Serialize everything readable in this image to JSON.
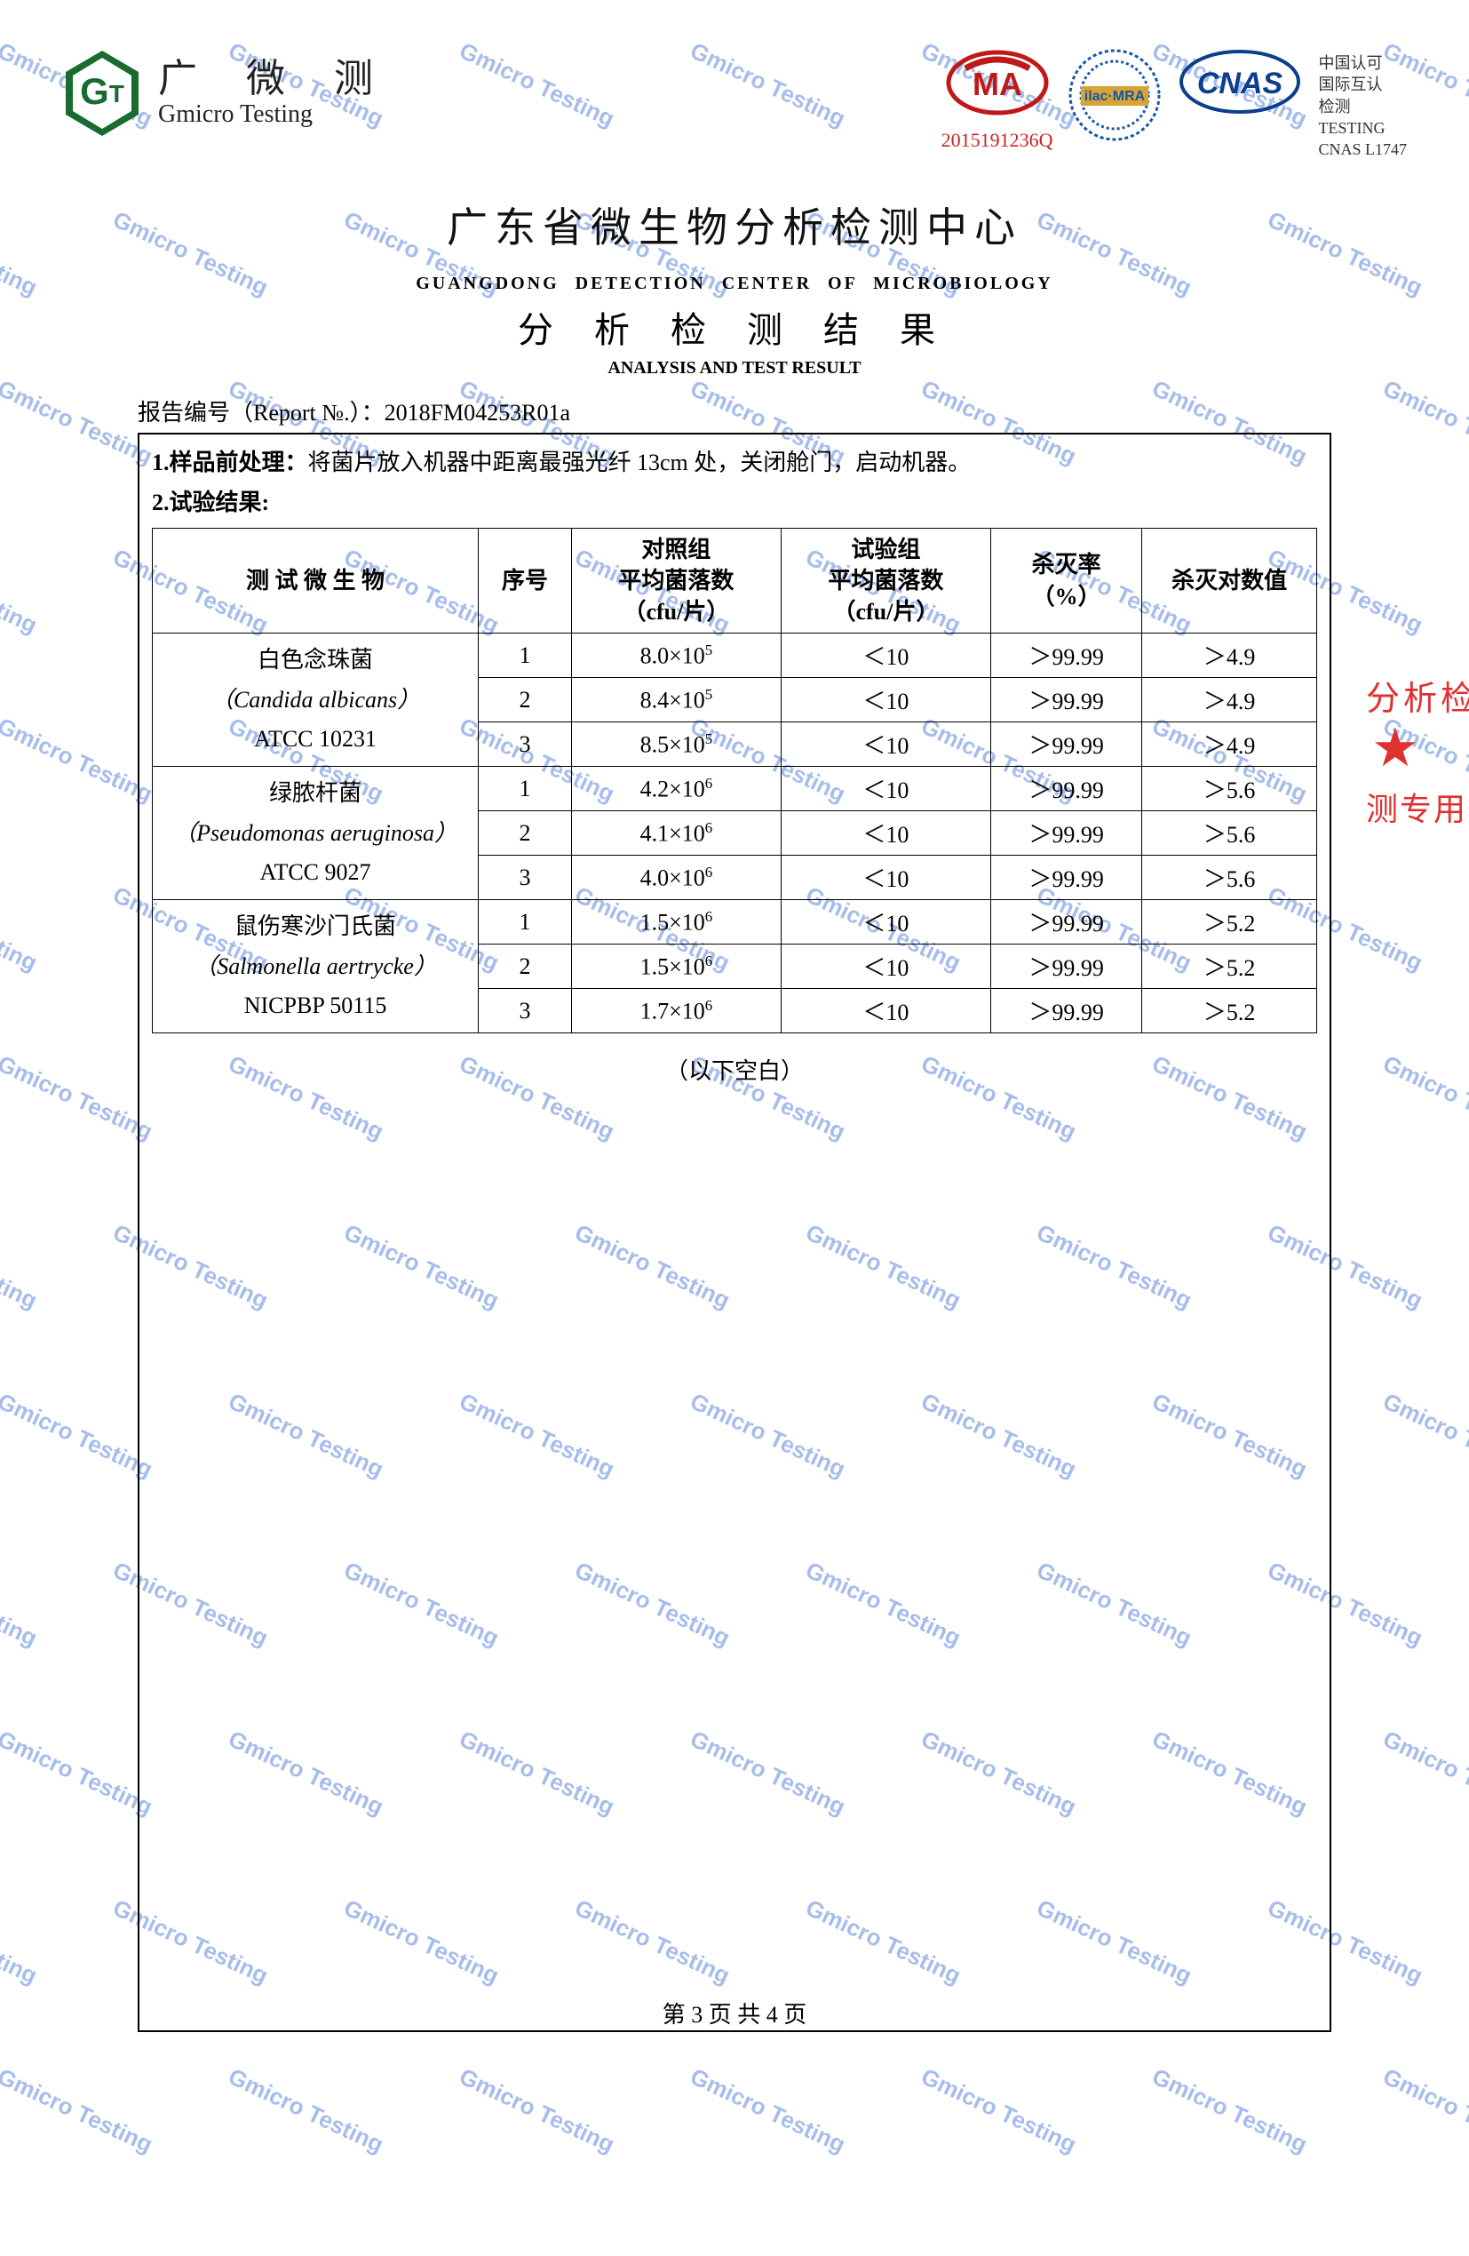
{
  "watermark": {
    "text": "Gmicro Testing",
    "color": "#3b6fd6",
    "angle_deg": 25,
    "fontsize": 26,
    "opacity": 0.45,
    "step_x": 260,
    "step_y": 190
  },
  "logo": {
    "cn": "广 微 测",
    "en": "Gmicro Testing",
    "hex_color": "#1a6b2f"
  },
  "certs": {
    "cma_number": "2015191236Q",
    "cma_color": "#c01818",
    "ilac_label": "ilac-MRA",
    "ilac_color": "#1556a6",
    "cnas_label": "CNAS",
    "cnas_color": "#0b3e8c",
    "cnas_side_lines": [
      "中国认可",
      "国际互认",
      "检测",
      "TESTING",
      "CNAS L1747"
    ]
  },
  "titles": {
    "org_cn": "广东省微生物分析检测中心",
    "org_en": "GUANGDONG  DETECTION  CENTER  OF  MICROBIOLOGY",
    "result_cn": "分 析 检 测 结 果",
    "result_en": "ANALYSIS AND TEST RESULT"
  },
  "report_no_label": "报告编号（Report №.）：",
  "report_no": "2018FM04253R01a",
  "preprocess_label": "1.样品前处理：",
  "preprocess_text": "将菌片放入机器中距离最强光纤 13cm 处，关闭舱门，启动机器。",
  "result_label": "2.试验结果:",
  "table": {
    "columns": [
      "测 试 微 生 物",
      "序号",
      "对照组\n平均菌落数\n（cfu/片）",
      "试验组\n平均菌落数\n（cfu/片）",
      "杀灭率\n（%）",
      "杀灭对数值"
    ],
    "col_widths_pct": [
      28,
      8,
      18,
      18,
      13,
      15
    ],
    "border_color": "#000000",
    "groups": [
      {
        "name_cn": "白色念珠菌",
        "latin": "（Candida albicans）",
        "strain": "ATCC 10231",
        "rows": [
          {
            "seq": "1",
            "ctrl_html": "8.0×10<sup>5</sup>",
            "test": "＜10",
            "rate": "＞99.99",
            "log": "＞4.9"
          },
          {
            "seq": "2",
            "ctrl_html": "8.4×10<sup>5</sup>",
            "test": "＜10",
            "rate": "＞99.99",
            "log": "＞4.9"
          },
          {
            "seq": "3",
            "ctrl_html": "8.5×10<sup>5</sup>",
            "test": "＜10",
            "rate": "＞99.99",
            "log": "＞4.9"
          }
        ]
      },
      {
        "name_cn": "绿脓杆菌",
        "latin": "（Pseudomonas aeruginosa）",
        "strain": "ATCC 9027",
        "rows": [
          {
            "seq": "1",
            "ctrl_html": "4.2×10<sup>6</sup>",
            "test": "＜10",
            "rate": "＞99.99",
            "log": "＞5.6"
          },
          {
            "seq": "2",
            "ctrl_html": "4.1×10<sup>6</sup>",
            "test": "＜10",
            "rate": "＞99.99",
            "log": "＞5.6"
          },
          {
            "seq": "3",
            "ctrl_html": "4.0×10<sup>6</sup>",
            "test": "＜10",
            "rate": "＞99.99",
            "log": "＞5.6"
          }
        ]
      },
      {
        "name_cn": "鼠伤寒沙门氏菌",
        "latin": "（Salmonella aertrycke）",
        "strain": "NICPBP 50115",
        "rows": [
          {
            "seq": "1",
            "ctrl_html": "1.5×10<sup>6</sup>",
            "test": "＜10",
            "rate": "＞99.99",
            "log": "＞5.2"
          },
          {
            "seq": "2",
            "ctrl_html": "1.5×10<sup>6</sup>",
            "test": "＜10",
            "rate": "＞99.99",
            "log": "＞5.2"
          },
          {
            "seq": "3",
            "ctrl_html": "1.7×10<sup>6</sup>",
            "test": "＜10",
            "rate": "＞99.99",
            "log": "＞5.2"
          }
        ]
      }
    ]
  },
  "blank_below": "（以下空白）",
  "pager": "第 3 页 共 4 页",
  "stamp": {
    "arc1": "分析检",
    "arc2": "测专用",
    "color": "#e03030"
  }
}
